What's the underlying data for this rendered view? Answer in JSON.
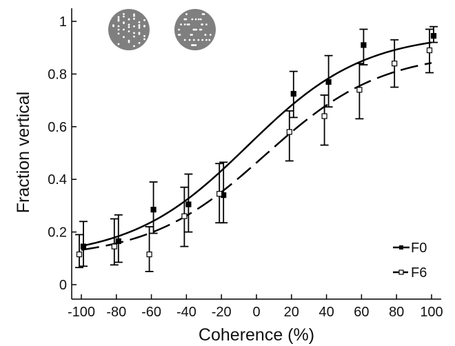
{
  "chart_data": {
    "type": "scatter",
    "xlabel": "Coherence (%)",
    "ylabel": "Fraction vertical",
    "xlim": [
      -100,
      100
    ],
    "ylim": [
      0,
      1
    ],
    "x_ticks": [
      -100,
      -80,
      -60,
      -40,
      -20,
      0,
      20,
      40,
      60,
      80,
      100
    ],
    "y_ticks": [
      0,
      0.2,
      0.4,
      0.6,
      0.8,
      1
    ],
    "y_tick_labels": [
      "0",
      "0.2",
      "0.4",
      "0.6",
      "0.8",
      "1"
    ],
    "legend_position": "bottom-right",
    "series": [
      {
        "name": "F0",
        "marker": "filled-square",
        "line": "solid",
        "color": "#000000",
        "x": [
          -100,
          -80,
          -60,
          -40,
          -20,
          20,
          40,
          60,
          100
        ],
        "y": [
          0.145,
          0.165,
          0.285,
          0.305,
          0.34,
          0.725,
          0.77,
          0.91,
          0.945
        ],
        "err_low": [
          0.075,
          0.08,
          0.09,
          0.105,
          0.105,
          0.09,
          0.095,
          0.075,
          0.025
        ],
        "err_high": [
          0.095,
          0.1,
          0.105,
          0.115,
          0.125,
          0.085,
          0.1,
          0.06,
          0.035
        ],
        "fit": {
          "lower": 0.1,
          "upper": 0.955,
          "midpoint": -5,
          "slope": 0.03
        }
      },
      {
        "name": "F6",
        "marker": "open-square",
        "line": "dashed",
        "color": "#000000",
        "x": [
          -100,
          -80,
          -60,
          -40,
          -20,
          20,
          40,
          60,
          80,
          100
        ],
        "y": [
          0.115,
          0.145,
          0.115,
          0.26,
          0.345,
          0.58,
          0.64,
          0.74,
          0.84,
          0.89
        ],
        "err_low": [
          0.05,
          0.07,
          0.065,
          0.115,
          0.11,
          0.11,
          0.11,
          0.11,
          0.09,
          0.085
        ],
        "err_high": [
          0.075,
          0.105,
          0.105,
          0.11,
          0.115,
          0.08,
          0.08,
          0.1,
          0.09,
          0.08
        ],
        "fit": {
          "lower": 0.1,
          "upper": 0.885,
          "midpoint": 5,
          "slope": 0.03
        }
      }
    ]
  },
  "stimulus_icons": [
    {
      "name": "vertical-dots-stimulus",
      "orientation": "vertical"
    },
    {
      "name": "horizontal-dots-stimulus",
      "orientation": "horizontal"
    }
  ]
}
